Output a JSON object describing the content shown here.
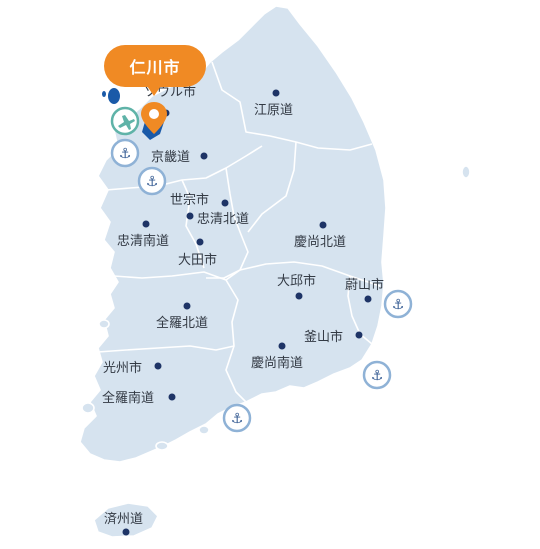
{
  "colors": {
    "land": "#d6e3ef",
    "border": "#ffffff",
    "dot": "#1e3466",
    "callout": "#f08a24",
    "port_ring": "#8fb2d6",
    "airport_ring": "#5fb3a8",
    "incheon_highlight": "#1a5aa8"
  },
  "callout": {
    "label": "仁川市",
    "icon": "location-pin-icon"
  },
  "places": [
    {
      "id": "seoul",
      "label": "ソウル市"
    },
    {
      "id": "gangwon",
      "label": "江原道"
    },
    {
      "id": "gyeonggi",
      "label": "京畿道"
    },
    {
      "id": "sejong",
      "label": "世宗市"
    },
    {
      "id": "chungbuk",
      "label": "忠清北道"
    },
    {
      "id": "chungnam",
      "label": "忠清南道"
    },
    {
      "id": "daejeon",
      "label": "大田市"
    },
    {
      "id": "gyeongbuk",
      "label": "慶尚北道"
    },
    {
      "id": "daegu",
      "label": "大邱市"
    },
    {
      "id": "ulsan",
      "label": "蔚山市"
    },
    {
      "id": "jeonbuk",
      "label": "全羅北道"
    },
    {
      "id": "busan",
      "label": "釜山市"
    },
    {
      "id": "gwangju",
      "label": "光州市"
    },
    {
      "id": "gyeongnam",
      "label": "慶尚南道"
    },
    {
      "id": "jeonnam",
      "label": "全羅南道"
    },
    {
      "id": "jeju",
      "label": "済州道"
    }
  ],
  "icons": {
    "airport": "airplane-icon",
    "port": "anchor-icon",
    "port_glyph": "⚓"
  }
}
